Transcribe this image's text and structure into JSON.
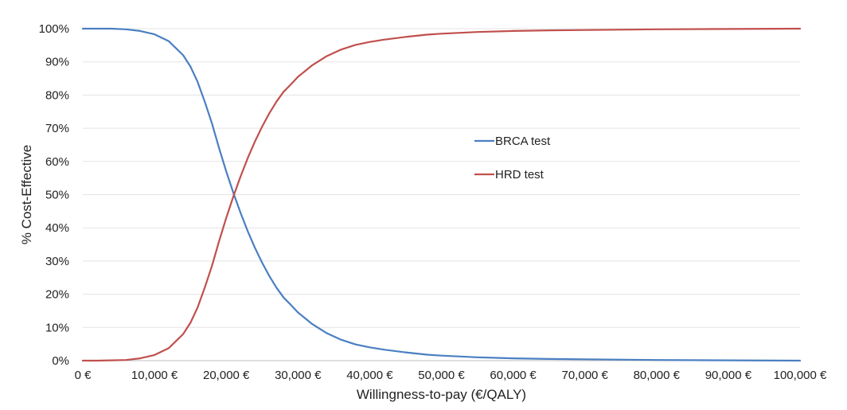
{
  "chart_data": {
    "type": "line",
    "title": "",
    "xlabel": "Willingness-to-pay (€/QALY)",
    "ylabel": "% Cost-Effective",
    "xlim": [
      0,
      100000
    ],
    "ylim": [
      0,
      100
    ],
    "grid": "horizontal",
    "legend_position": "center-right",
    "x_ticks": [
      0,
      10000,
      20000,
      30000,
      40000,
      50000,
      60000,
      70000,
      80000,
      90000,
      100000
    ],
    "x_tick_labels": [
      "0 €",
      "10,000 €",
      "20,000 €",
      "30,000 €",
      "40,000 €",
      "50,000 €",
      "60,000 €",
      "70,000 €",
      "80,000 €",
      "90,000 €",
      "100,000 €"
    ],
    "y_ticks": [
      0,
      10,
      20,
      30,
      40,
      50,
      60,
      70,
      80,
      90,
      100
    ],
    "y_tick_labels": [
      "0%",
      "10%",
      "20%",
      "30%",
      "40%",
      "50%",
      "60%",
      "70%",
      "80%",
      "90%",
      "100%"
    ],
    "x": [
      0,
      2000,
      4000,
      6000,
      8000,
      10000,
      12000,
      14000,
      15000,
      16000,
      17000,
      18000,
      19000,
      20000,
      21000,
      22000,
      23000,
      24000,
      25000,
      26000,
      27000,
      28000,
      29000,
      30000,
      32000,
      34000,
      36000,
      38000,
      40000,
      42000,
      45000,
      48000,
      50000,
      55000,
      60000,
      65000,
      70000,
      80000,
      90000,
      100000
    ],
    "series": [
      {
        "name": "BRCA test",
        "color": "#4a7fc1",
        "values": [
          100,
          100,
          100,
          99.8,
          99.3,
          98.3,
          96.2,
          92.0,
          88.6,
          84.0,
          78.0,
          71.5,
          64.0,
          57.0,
          50.5,
          44.5,
          39.0,
          34.0,
          29.5,
          25.5,
          22.0,
          19.0,
          16.8,
          14.5,
          11.0,
          8.3,
          6.3,
          4.9,
          4.0,
          3.3,
          2.5,
          1.8,
          1.5,
          1.0,
          0.7,
          0.5,
          0.4,
          0.2,
          0.1,
          0.0
        ]
      },
      {
        "name": "HRD test",
        "color": "#c0504d",
        "values": [
          0,
          0,
          0.1,
          0.2,
          0.7,
          1.7,
          3.8,
          8.0,
          11.4,
          16.0,
          22.0,
          28.5,
          36.0,
          43.0,
          49.5,
          55.5,
          61.0,
          66.0,
          70.5,
          74.5,
          78.0,
          81.0,
          83.2,
          85.5,
          89.0,
          91.7,
          93.7,
          95.1,
          96.0,
          96.7,
          97.5,
          98.2,
          98.5,
          99.0,
          99.3,
          99.5,
          99.6,
          99.8,
          99.9,
          100
        ]
      }
    ]
  }
}
